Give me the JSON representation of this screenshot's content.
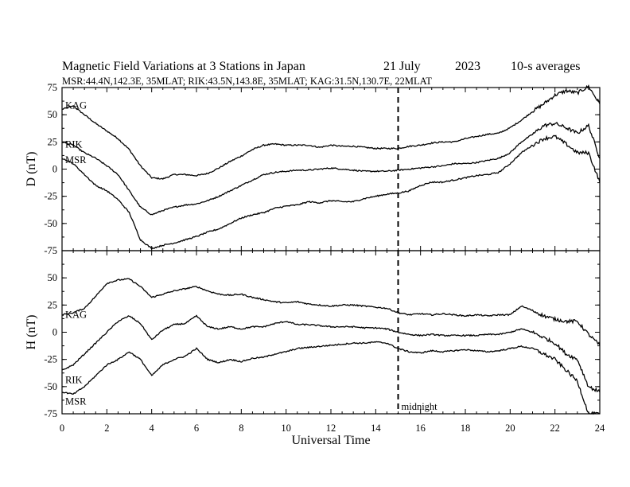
{
  "chart_data": {
    "type": "line",
    "title": "Magnetic Field Variations at 3 Stations in Japan",
    "date": "21 July",
    "year": "2023",
    "averaging": "10-s averages",
    "subtitle": "MSR:44.4N,142.3E, 35MLAT;  RIK:43.5N,143.8E, 35MLAT;  KAG:31.5N,130.7E, 22MLAT",
    "xlabel": "Universal Time",
    "xlim": [
      0,
      24
    ],
    "xticks": [
      "0",
      "2",
      "4",
      "6",
      "8",
      "10",
      "12",
      "14",
      "16",
      "18",
      "20",
      "22",
      "24"
    ],
    "midnight_ut": 15,
    "midnight_label": "midnight",
    "panels": [
      {
        "ylabel": "D (nT)",
        "ylim": [
          -75,
          75
        ],
        "yticks": [
          "75",
          "50",
          "25",
          "0",
          "-25",
          "-50",
          "-75"
        ],
        "series": [
          {
            "name": "KAG",
            "x": [
              0,
              0.5,
              1,
              1.5,
              2,
              2.5,
              3,
              3.5,
              4,
              4.5,
              5,
              5.5,
              6,
              6.5,
              7,
              7.5,
              8,
              8.5,
              9,
              9.5,
              10,
              10.5,
              11,
              11.5,
              12,
              12.5,
              13,
              13.5,
              14,
              14.5,
              15,
              15.5,
              16,
              16.5,
              17,
              17.5,
              18,
              18.5,
              19,
              19.5,
              20,
              20.5,
              21,
              21.5,
              22,
              22.5,
              23,
              23.5,
              24
            ],
            "y": [
              55,
              58,
              50,
              42,
              35,
              28,
              18,
              3,
              -8,
              -9,
              -5,
              -5,
              -6,
              -4,
              1,
              7,
              12,
              18,
              22,
              23,
              22,
              22,
              22,
              20,
              22,
              21,
              21,
              20,
              19,
              19,
              19,
              21,
              22,
              24,
              25,
              25,
              28,
              30,
              32,
              33,
              38,
              45,
              53,
              60,
              68,
              72,
              70,
              76,
              60
            ]
          },
          {
            "name": "RIK",
            "x": [
              0,
              0.5,
              1,
              1.5,
              2,
              2.5,
              3,
              3.5,
              4,
              4.5,
              5,
              5.5,
              6,
              6.5,
              7,
              7.5,
              8,
              8.5,
              9,
              9.5,
              10,
              10.5,
              11,
              11.5,
              12,
              12.5,
              13,
              13.5,
              14,
              14.5,
              15,
              15.5,
              16,
              16.5,
              17,
              17.5,
              18,
              18.5,
              19,
              19.5,
              20,
              20.5,
              21,
              21.5,
              22,
              22.5,
              23,
              23.5,
              24
            ],
            "y": [
              25,
              22,
              15,
              10,
              3,
              -5,
              -20,
              -35,
              -42,
              -38,
              -35,
              -33,
              -32,
              -29,
              -25,
              -20,
              -15,
              -10,
              -5,
              -3,
              -2,
              -1,
              -1,
              0,
              1,
              0,
              -1,
              -2,
              -2,
              -2,
              -1,
              0,
              1,
              2,
              3,
              5,
              5,
              6,
              8,
              10,
              15,
              25,
              32,
              40,
              42,
              38,
              33,
              40,
              10
            ]
          },
          {
            "name": "MSR",
            "x": [
              0,
              0.5,
              1,
              1.5,
              2,
              2.5,
              3,
              3.5,
              4,
              4.5,
              5,
              5.5,
              6,
              6.5,
              7,
              7.5,
              8,
              8.5,
              9,
              9.5,
              10,
              10.5,
              11,
              11.5,
              12,
              12.5,
              13,
              13.5,
              14,
              14.5,
              15,
              15.5,
              16,
              16.5,
              17,
              17.5,
              18,
              18.5,
              19,
              19.5,
              20,
              20.5,
              21,
              21.5,
              22,
              22.5,
              23,
              23.5,
              24
            ],
            "y": [
              10,
              5,
              -5,
              -15,
              -20,
              -28,
              -40,
              -65,
              -73,
              -70,
              -68,
              -65,
              -62,
              -58,
              -55,
              -50,
              -45,
              -42,
              -40,
              -36,
              -34,
              -33,
              -30,
              -31,
              -29,
              -30,
              -30,
              -27,
              -25,
              -23,
              -22,
              -20,
              -15,
              -12,
              -12,
              -10,
              -8,
              -6,
              -5,
              -3,
              5,
              15,
              22,
              28,
              30,
              23,
              15,
              15,
              -12
            ]
          }
        ]
      },
      {
        "ylabel": "H (nT)",
        "ylim": [
          -75,
          75
        ],
        "yticks": [
          "50",
          "25",
          "0",
          "-25",
          "-50",
          "-75"
        ],
        "series": [
          {
            "name": "KAG",
            "x": [
              0,
              0.5,
              1,
              1.5,
              2,
              2.5,
              3,
              3.5,
              4,
              4.5,
              5,
              5.5,
              6,
              6.5,
              7,
              7.5,
              8,
              8.5,
              9,
              9.5,
              10,
              10.5,
              11,
              11.5,
              12,
              12.5,
              13,
              13.5,
              14,
              14.5,
              15,
              15.5,
              16,
              16.5,
              17,
              17.5,
              18,
              18.5,
              19,
              19.5,
              20,
              20.5,
              21,
              21.5,
              22,
              22.5,
              23,
              23.5,
              24
            ],
            "y": [
              16,
              18,
              22,
              33,
              45,
              48,
              49,
              42,
              32,
              35,
              38,
              40,
              42,
              38,
              35,
              34,
              35,
              32,
              30,
              28,
              27,
              28,
              26,
              25,
              24,
              25,
              25,
              24,
              23,
              22,
              18,
              16,
              17,
              16,
              17,
              16,
              15,
              16,
              15,
              16,
              16,
              24,
              20,
              15,
              12,
              10,
              10,
              -2,
              -12
            ]
          },
          {
            "name": "RIK",
            "x": [
              0,
              0.5,
              1,
              1.5,
              2,
              2.5,
              3,
              3.5,
              4,
              4.5,
              5,
              5.5,
              6,
              6.5,
              7,
              7.5,
              8,
              8.5,
              9,
              9.5,
              10,
              10.5,
              11,
              11.5,
              12,
              12.5,
              13,
              13.5,
              14,
              14.5,
              15,
              15.5,
              16,
              16.5,
              17,
              17.5,
              18,
              18.5,
              19,
              19.5,
              20,
              20.5,
              21,
              21.5,
              22,
              22.5,
              23,
              23.5,
              24
            ],
            "y": [
              -35,
              -30,
              -20,
              -10,
              0,
              10,
              15,
              8,
              -7,
              2,
              7,
              8,
              15,
              5,
              3,
              5,
              3,
              5,
              5,
              8,
              10,
              7,
              7,
              6,
              5,
              5,
              5,
              4,
              4,
              3,
              0,
              -2,
              -3,
              -2,
              -3,
              -3,
              -3,
              -3,
              -2,
              -2,
              0,
              3,
              0,
              -5,
              -10,
              -20,
              -25,
              -50,
              -55
            ]
          },
          {
            "name": "MSR",
            "x": [
              0,
              0.5,
              1,
              1.5,
              2,
              2.5,
              3,
              3.5,
              4,
              4.5,
              5,
              5.5,
              6,
              6.5,
              7,
              7.5,
              8,
              8.5,
              9,
              9.5,
              10,
              10.5,
              11,
              11.5,
              12,
              12.5,
              13,
              13.5,
              14,
              14.5,
              15,
              15.5,
              16,
              16.5,
              17,
              17.5,
              18,
              18.5,
              19,
              19.5,
              20,
              20.5,
              21,
              21.5,
              22,
              22.5,
              23,
              23.5,
              24
            ],
            "y": [
              -55,
              -57,
              -50,
              -40,
              -30,
              -25,
              -18,
              -25,
              -40,
              -30,
              -25,
              -22,
              -15,
              -25,
              -28,
              -25,
              -27,
              -24,
              -23,
              -20,
              -18,
              -15,
              -14,
              -13,
              -12,
              -11,
              -10,
              -10,
              -9,
              -10,
              -15,
              -18,
              -19,
              -17,
              -18,
              -17,
              -16,
              -17,
              -18,
              -17,
              -15,
              -13,
              -15,
              -20,
              -25,
              -35,
              -45,
              -75,
              -75
            ]
          }
        ]
      }
    ]
  }
}
